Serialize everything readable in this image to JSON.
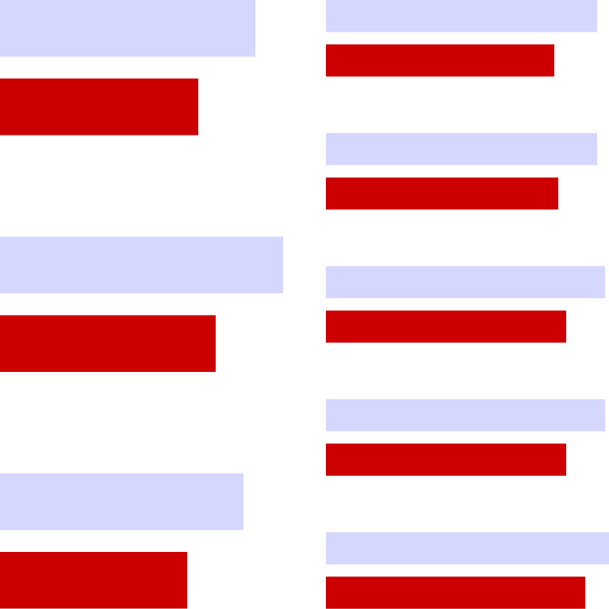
{
  "colors": {
    "series_a": "#d5d7ff",
    "series_b": "#cc0000",
    "background": "#ffffff"
  },
  "chart_data": [
    {
      "type": "bar",
      "orientation": "horizontal",
      "categories": [
        "",
        "",
        ""
      ],
      "series": [
        {
          "values": [
            32.2,
            35.7,
            30.7
          ]
        },
        {
          "values": [
            25.0,
            27.2,
            23.6
          ]
        }
      ],
      "xlim": [
        0,
        36
      ],
      "grid": false,
      "axes_visible": false
    },
    {
      "type": "bar",
      "orientation": "horizontal",
      "categories": [
        "",
        "",
        "",
        "",
        ""
      ],
      "series": [
        {
          "values": [
            34.2,
            34.2,
            35.2,
            35.2,
            35.7
          ]
        },
        {
          "values": [
            28.8,
            29.3,
            30.3,
            30.3,
            32.7
          ]
        }
      ],
      "xlim": [
        0,
        36
      ],
      "grid": false,
      "axes_visible": false
    }
  ]
}
